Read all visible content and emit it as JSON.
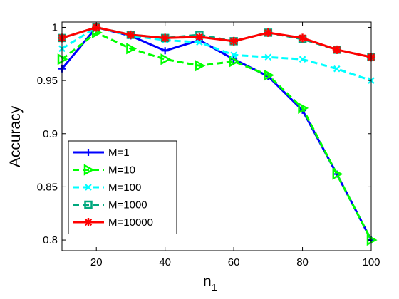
{
  "chart_data": {
    "type": "line",
    "xlabel": "n",
    "xlabel_subscript": "1",
    "ylabel": "Accuracy",
    "xlim": [
      10,
      100
    ],
    "ylim": [
      0.79,
      1.005
    ],
    "xticks": [
      20,
      40,
      60,
      80,
      100
    ],
    "yticks": [
      0.8,
      0.85,
      0.9,
      0.95,
      1
    ],
    "ytick_labels": [
      "0.8",
      "0.85",
      "0.9",
      "0.95",
      "1"
    ],
    "grid": false,
    "legend_position": "bottom-left",
    "x": [
      10,
      20,
      30,
      40,
      50,
      60,
      70,
      80,
      90,
      100
    ],
    "series": [
      {
        "name": "M=1",
        "color": "#0000ff",
        "marker": "plus",
        "dashed": false,
        "values": [
          0.961,
          1.0,
          0.992,
          0.978,
          0.988,
          0.97,
          0.954,
          0.922,
          0.862,
          0.8
        ]
      },
      {
        "name": "M=10",
        "color": "#00ff00",
        "marker": "triangle-right",
        "dashed": true,
        "values": [
          0.97,
          0.995,
          0.98,
          0.97,
          0.964,
          0.968,
          0.955,
          0.924,
          0.862,
          0.8
        ]
      },
      {
        "name": "M=100",
        "color": "#00ffff",
        "marker": "x",
        "dashed": true,
        "values": [
          0.98,
          1.0,
          0.992,
          0.988,
          0.986,
          0.974,
          0.972,
          0.97,
          0.961,
          0.95
        ]
      },
      {
        "name": "M=1000",
        "color": "#00a87e",
        "marker": "square",
        "dashed": true,
        "values": [
          0.99,
          1.0,
          0.993,
          0.99,
          0.993,
          0.987,
          0.995,
          0.989,
          0.979,
          0.972
        ]
      },
      {
        "name": "M=10000",
        "color": "#ff0000",
        "marker": "star",
        "dashed": false,
        "values": [
          0.99,
          1.0,
          0.993,
          0.99,
          0.991,
          0.987,
          0.995,
          0.99,
          0.979,
          0.972
        ]
      }
    ]
  }
}
